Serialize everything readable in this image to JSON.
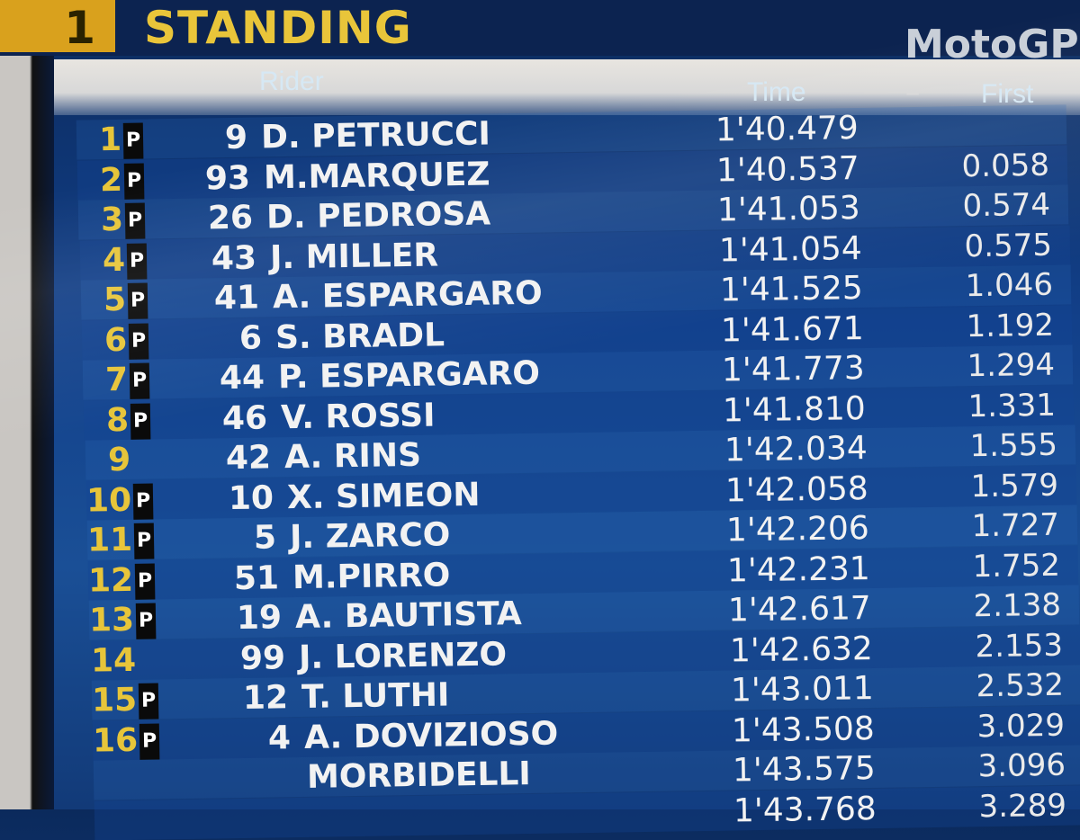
{
  "header": {
    "position": "1",
    "title": "STANDING",
    "series": "MotoGP -"
  },
  "columns": {
    "rider": "Rider",
    "time": "Time",
    "first": "First"
  },
  "colors": {
    "accent_yellow": "#e7c53a",
    "background_blue": "#12408a",
    "pit_flag_bg": "#0a0a0a"
  },
  "rows": [
    {
      "pos": "1",
      "flag": "P",
      "num": "9",
      "name": "D. PETRUCCI",
      "time": "1'40.479",
      "gap": ""
    },
    {
      "pos": "2",
      "flag": "P",
      "num": "93",
      "name": "M.MARQUEZ",
      "time": "1'40.537",
      "gap": "0.058"
    },
    {
      "pos": "3",
      "flag": "P",
      "num": "26",
      "name": "D. PEDROSA",
      "time": "1'41.053",
      "gap": "0.574"
    },
    {
      "pos": "4",
      "flag": "P",
      "num": "43",
      "name": "J. MILLER",
      "time": "1'41.054",
      "gap": "0.575"
    },
    {
      "pos": "5",
      "flag": "P",
      "num": "41",
      "name": "A. ESPARGARO",
      "time": "1'41.525",
      "gap": "1.046"
    },
    {
      "pos": "6",
      "flag": "P",
      "num": "6",
      "name": "S. BRADL",
      "time": "1'41.671",
      "gap": "1.192"
    },
    {
      "pos": "7",
      "flag": "P",
      "num": "44",
      "name": "P. ESPARGARO",
      "time": "1'41.773",
      "gap": "1.294"
    },
    {
      "pos": "8",
      "flag": "P",
      "num": "46",
      "name": "V. ROSSI",
      "time": "1'41.810",
      "gap": "1.331"
    },
    {
      "pos": "9",
      "flag": "",
      "num": "42",
      "name": "A. RINS",
      "time": "1'42.034",
      "gap": "1.555"
    },
    {
      "pos": "10",
      "flag": "P",
      "num": "10",
      "name": "X. SIMEON",
      "time": "1'42.058",
      "gap": "1.579"
    },
    {
      "pos": "11",
      "flag": "P",
      "num": "5",
      "name": "J. ZARCO",
      "time": "1'42.206",
      "gap": "1.727"
    },
    {
      "pos": "12",
      "flag": "P",
      "num": "51",
      "name": "M.PIRRO",
      "time": "1'42.231",
      "gap": "1.752"
    },
    {
      "pos": "13",
      "flag": "P",
      "num": "19",
      "name": "A. BAUTISTA",
      "time": "1'42.617",
      "gap": "2.138"
    },
    {
      "pos": "14",
      "flag": "",
      "num": "99",
      "name": "J. LORENZO",
      "time": "1'42.632",
      "gap": "2.153"
    },
    {
      "pos": "15",
      "flag": "P",
      "num": "12",
      "name": "T. LUTHI",
      "time": "1'43.011",
      "gap": "2.532"
    },
    {
      "pos": "16",
      "flag": "P",
      "num": "4",
      "name": "A. DOVIZIOSO",
      "time": "1'43.508",
      "gap": "3.029"
    },
    {
      "pos": "",
      "flag": "",
      "num": "",
      "name": "MORBIDELLI",
      "time": "1'43.575",
      "gap": "3.096"
    },
    {
      "pos": "",
      "flag": "",
      "num": "",
      "name": "",
      "time": "1'43.768",
      "gap": "3.289"
    }
  ]
}
